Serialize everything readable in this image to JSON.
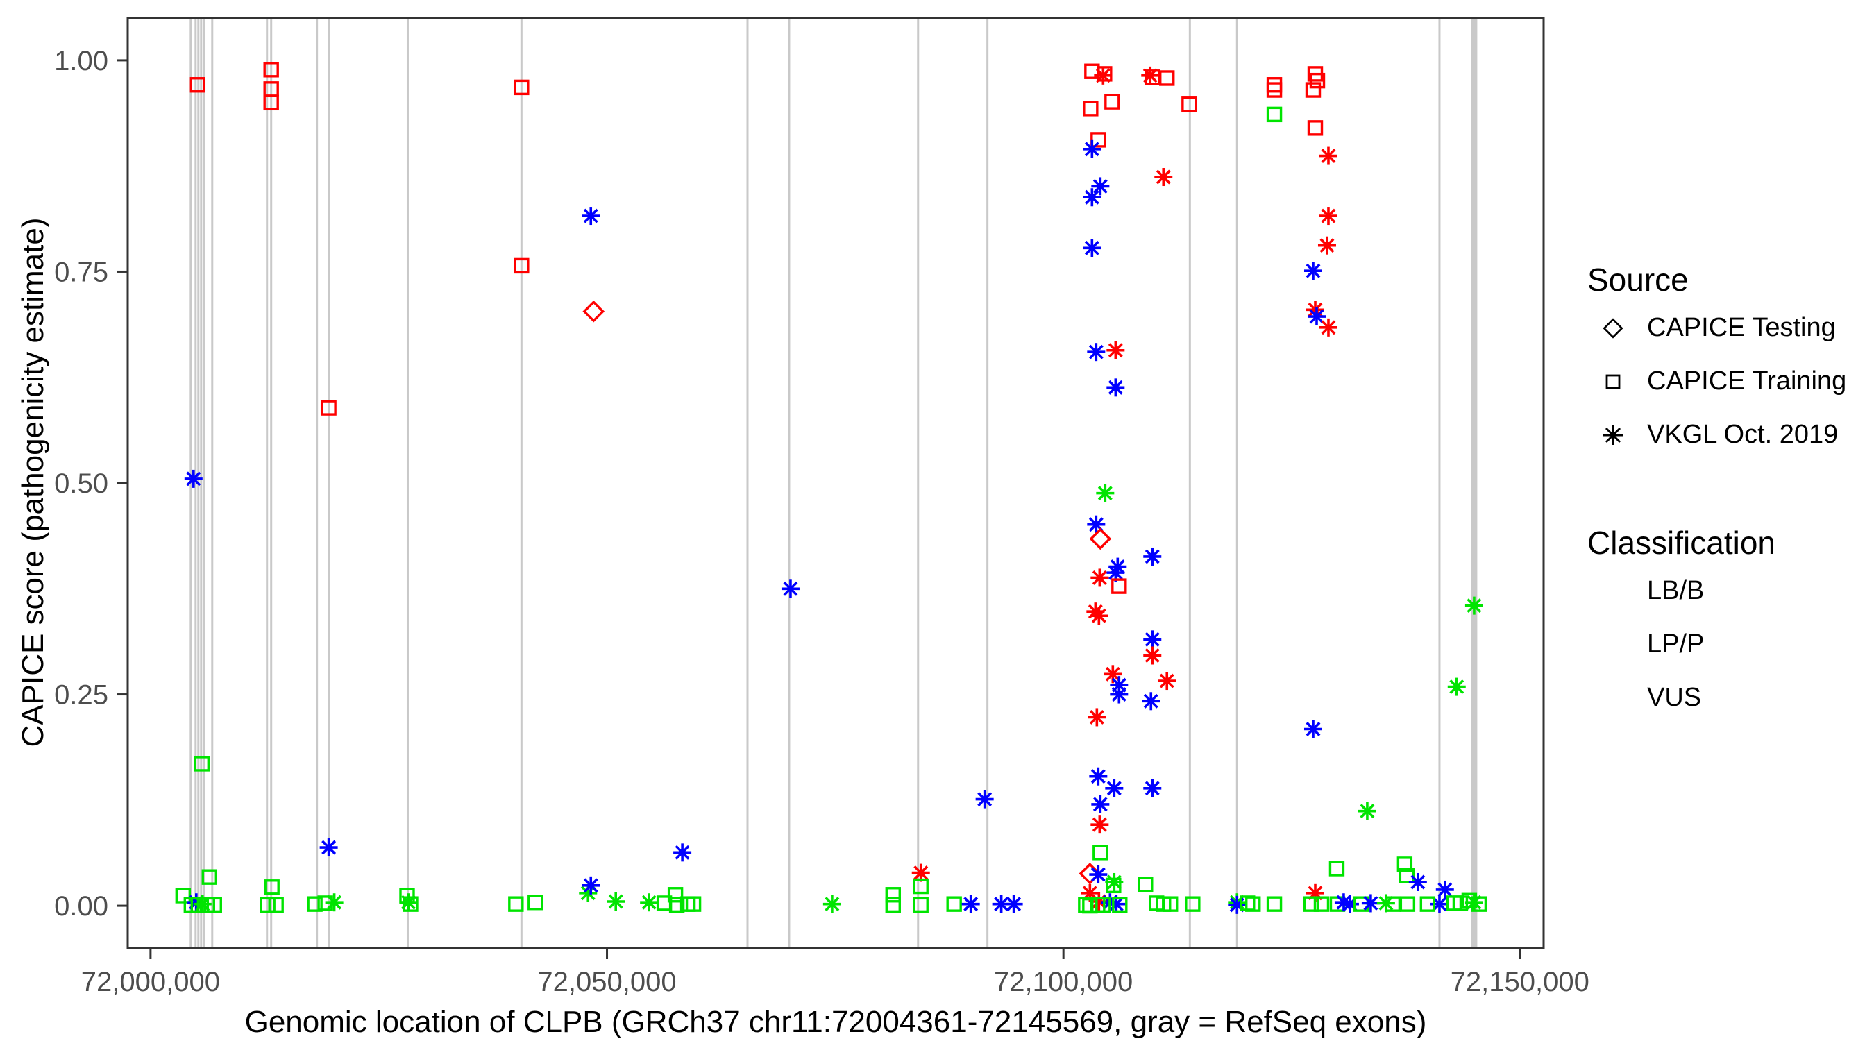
{
  "chart_data": {
    "type": "scatter",
    "xlabel": "Genomic location of CLPB (GRCh37 chr11:72004361-72145569, gray = RefSeq exons)",
    "ylabel": "CAPICE score (pathogenicity estimate)",
    "xlim": [
      71997500,
      72152600
    ],
    "ylim": [
      -0.05,
      1.05
    ],
    "grid": false,
    "x_ticks": [
      {
        "value": 72000000,
        "label": "72,000,000"
      },
      {
        "value": 72050000,
        "label": "72,050,000"
      },
      {
        "value": 72100000,
        "label": "72,100,000"
      },
      {
        "value": 72150000,
        "label": "72,150,000"
      }
    ],
    "y_ticks": [
      {
        "value": 0.0,
        "label": "0.00"
      },
      {
        "value": 0.25,
        "label": "0.25"
      },
      {
        "value": 0.5,
        "label": "0.50"
      },
      {
        "value": 0.75,
        "label": "0.75"
      },
      {
        "value": 1.0,
        "label": "1.00"
      }
    ],
    "exon_note": "gray vertical lines = RefSeq exons",
    "exons": [
      {
        "pos": 72004404,
        "w": 3
      },
      {
        "pos": 72004936,
        "w": 3
      },
      {
        "pos": 72005240,
        "w": 3
      },
      {
        "pos": 72005544,
        "w": 3
      },
      {
        "pos": 72005848,
        "w": 3
      },
      {
        "pos": 72006759,
        "w": 3
      },
      {
        "pos": 72012759,
        "w": 3
      },
      {
        "pos": 72013215,
        "w": 3
      },
      {
        "pos": 72018228,
        "w": 3
      },
      {
        "pos": 72019519,
        "w": 3
      },
      {
        "pos": 72028177,
        "w": 3
      },
      {
        "pos": 72040633,
        "w": 3
      },
      {
        "pos": 72065395,
        "w": 3
      },
      {
        "pos": 72069952,
        "w": 3
      },
      {
        "pos": 72084079,
        "w": 3
      },
      {
        "pos": 72091674,
        "w": 3
      },
      {
        "pos": 72113851,
        "w": 3
      },
      {
        "pos": 72119016,
        "w": 3
      },
      {
        "pos": 72141193,
        "w": 3
      },
      {
        "pos": 72144990,
        "w": 9
      }
    ],
    "classification_colors": {
      "LB/B": "#00E400",
      "LP/P": "#FF0000",
      "VUS": "#0000FF"
    },
    "source_shapes": {
      "testing": "diamond",
      "training": "square",
      "vkgl": "asterisk"
    },
    "points": [
      [
        72004709,
        0.505,
        "VUS",
        "vkgl"
      ],
      [
        72005164,
        0.971,
        "LP/P",
        "training"
      ],
      [
        72005620,
        0.168,
        "LB/B",
        "training"
      ],
      [
        72006455,
        0.034,
        "LB/B",
        "training"
      ],
      [
        72003569,
        0.012,
        "LB/B",
        "training"
      ],
      [
        72005012,
        0.004,
        "VUS",
        "vkgl"
      ],
      [
        72005696,
        0.002,
        "LB/B",
        "vkgl"
      ],
      [
        72004480,
        0.001,
        "LB/B",
        "training"
      ],
      [
        72005240,
        0.001,
        "LB/B",
        "training"
      ],
      [
        72006227,
        0.001,
        "LB/B",
        "training"
      ],
      [
        72006987,
        0.001,
        "LB/B",
        "training"
      ],
      [
        72013215,
        0.989,
        "LP/P",
        "training"
      ],
      [
        72013215,
        0.966,
        "LP/P",
        "training"
      ],
      [
        72013215,
        0.95,
        "LP/P",
        "training"
      ],
      [
        72013291,
        0.022,
        "LB/B",
        "training"
      ],
      [
        72012835,
        0.001,
        "LB/B",
        "training"
      ],
      [
        72013747,
        0.001,
        "LB/B",
        "training"
      ],
      [
        72019519,
        0.589,
        "LP/P",
        "training"
      ],
      [
        72019519,
        0.069,
        "VUS",
        "vkgl"
      ],
      [
        72018000,
        0.002,
        "LB/B",
        "training"
      ],
      [
        72019139,
        0.003,
        "LB/B",
        "training"
      ],
      [
        72020127,
        0.004,
        "LB/B",
        "vkgl"
      ],
      [
        72028101,
        0.012,
        "LB/B",
        "training"
      ],
      [
        72028253,
        0.004,
        "LB/B",
        "vkgl"
      ],
      [
        72028481,
        0.002,
        "LB/B",
        "training"
      ],
      [
        72040633,
        0.968,
        "LP/P",
        "training"
      ],
      [
        72040633,
        0.757,
        "LP/P",
        "training"
      ],
      [
        72048230,
        0.816,
        "VUS",
        "vkgl"
      ],
      [
        72048534,
        0.703,
        "LP/P",
        "testing"
      ],
      [
        72040025,
        0.002,
        "LB/B",
        "training"
      ],
      [
        72042152,
        0.004,
        "LB/B",
        "training"
      ],
      [
        72047926,
        0.015,
        "LB/B",
        "vkgl"
      ],
      [
        72048230,
        0.024,
        "VUS",
        "vkgl"
      ],
      [
        72050964,
        0.005,
        "LB/B",
        "vkgl"
      ],
      [
        72054610,
        0.004,
        "LB/B",
        "vkgl"
      ],
      [
        72056281,
        0.003,
        "LB/B",
        "training"
      ],
      [
        72057496,
        0.013,
        "LB/B",
        "training"
      ],
      [
        72057648,
        0.001,
        "LB/B",
        "training"
      ],
      [
        72058863,
        0.002,
        "LB/B",
        "training"
      ],
      [
        72059471,
        0.002,
        "LB/B",
        "training"
      ],
      [
        72058255,
        0.063,
        "VUS",
        "vkgl"
      ],
      [
        72070104,
        0.375,
        "VUS",
        "vkgl"
      ],
      [
        72074660,
        0.002,
        "LB/B",
        "vkgl"
      ],
      [
        72081344,
        0.013,
        "LB/B",
        "training"
      ],
      [
        72081344,
        0.001,
        "LB/B",
        "training"
      ],
      [
        72084382,
        0.039,
        "LP/P",
        "vkgl"
      ],
      [
        72084382,
        0.023,
        "LB/B",
        "training"
      ],
      [
        72084382,
        0.001,
        "LB/B",
        "training"
      ],
      [
        72088028,
        0.002,
        "LB/B",
        "training"
      ],
      [
        72089851,
        0.002,
        "VUS",
        "vkgl"
      ],
      [
        72091370,
        0.126,
        "VUS",
        "vkgl"
      ],
      [
        72093193,
        0.002,
        "VUS",
        "vkgl"
      ],
      [
        72094560,
        0.002,
        "VUS",
        "vkgl"
      ],
      [
        72103130,
        0.987,
        "LP/P",
        "training"
      ],
      [
        72104498,
        0.984,
        "LP/P",
        "training"
      ],
      [
        72104346,
        0.982,
        "LP/P",
        "vkgl"
      ],
      [
        72109511,
        0.982,
        "LP/P",
        "vkgl"
      ],
      [
        72109739,
        0.98,
        "LP/P",
        "training"
      ],
      [
        72111334,
        0.979,
        "LP/P",
        "training"
      ],
      [
        72113775,
        0.948,
        "LP/P",
        "training"
      ],
      [
        72102978,
        0.943,
        "LP/P",
        "training"
      ],
      [
        72105334,
        0.951,
        "LP/P",
        "training"
      ],
      [
        72103814,
        0.906,
        "LP/P",
        "training"
      ],
      [
        72103130,
        0.895,
        "VUS",
        "vkgl"
      ],
      [
        72104042,
        0.851,
        "VUS",
        "vkgl"
      ],
      [
        72103130,
        0.838,
        "VUS",
        "vkgl"
      ],
      [
        72110954,
        0.862,
        "LP/P",
        "vkgl"
      ],
      [
        72103130,
        0.778,
        "VUS",
        "vkgl"
      ],
      [
        72103586,
        0.655,
        "VUS",
        "vkgl"
      ],
      [
        72105714,
        0.657,
        "LP/P",
        "vkgl"
      ],
      [
        72105714,
        0.613,
        "VUS",
        "vkgl"
      ],
      [
        72104574,
        0.488,
        "LB/B",
        "vkgl"
      ],
      [
        72103586,
        0.451,
        "VUS",
        "vkgl"
      ],
      [
        72104042,
        0.434,
        "LP/P",
        "testing"
      ],
      [
        72109739,
        0.413,
        "VUS",
        "vkgl"
      ],
      [
        72105941,
        0.401,
        "VUS",
        "vkgl"
      ],
      [
        72105714,
        0.394,
        "VUS",
        "vkgl"
      ],
      [
        72103966,
        0.388,
        "LP/P",
        "vkgl"
      ],
      [
        72106093,
        0.378,
        "LP/P",
        "training"
      ],
      [
        72103510,
        0.348,
        "LP/P",
        "vkgl"
      ],
      [
        72103890,
        0.343,
        "LP/P",
        "vkgl"
      ],
      [
        72109739,
        0.315,
        "VUS",
        "vkgl"
      ],
      [
        72109739,
        0.296,
        "LP/P",
        "vkgl"
      ],
      [
        72105410,
        0.274,
        "LP/P",
        "vkgl"
      ],
      [
        72111334,
        0.266,
        "LP/P",
        "vkgl"
      ],
      [
        72106093,
        0.261,
        "VUS",
        "vkgl"
      ],
      [
        72106093,
        0.25,
        "VUS",
        "vkgl"
      ],
      [
        72109587,
        0.242,
        "VUS",
        "vkgl"
      ],
      [
        72103662,
        0.223,
        "LP/P",
        "vkgl"
      ],
      [
        72103814,
        0.153,
        "VUS",
        "vkgl"
      ],
      [
        72105562,
        0.139,
        "VUS",
        "vkgl"
      ],
      [
        72109739,
        0.139,
        "VUS",
        "vkgl"
      ],
      [
        72104042,
        0.12,
        "VUS",
        "vkgl"
      ],
      [
        72103966,
        0.096,
        "LP/P",
        "vkgl"
      ],
      [
        72104042,
        0.063,
        "LB/B",
        "training"
      ],
      [
        72102902,
        0.038,
        "LP/P",
        "testing"
      ],
      [
        72103814,
        0.037,
        "VUS",
        "vkgl"
      ],
      [
        72105562,
        0.028,
        "LB/B",
        "vkgl"
      ],
      [
        72105486,
        0.024,
        "LB/B",
        "training"
      ],
      [
        72102902,
        0.015,
        "LP/P",
        "vkgl"
      ],
      [
        72103890,
        0.005,
        "LP/P",
        "vkgl"
      ],
      [
        72105106,
        0.004,
        "VUS",
        "vkgl"
      ],
      [
        72105790,
        0.002,
        "VUS",
        "vkgl"
      ],
      [
        72102446,
        0.001,
        "LB/B",
        "training"
      ],
      [
        72102902,
        0.0,
        "LB/B",
        "training"
      ],
      [
        72103738,
        0.001,
        "LB/B",
        "training"
      ],
      [
        72104346,
        0.001,
        "LB/B",
        "training"
      ],
      [
        72106169,
        0.001,
        "LB/B",
        "training"
      ],
      [
        72108980,
        0.025,
        "LB/B",
        "training"
      ],
      [
        72110195,
        0.003,
        "LB/B",
        "training"
      ],
      [
        72110954,
        0.002,
        "LB/B",
        "training"
      ],
      [
        72111713,
        0.002,
        "LB/B",
        "training"
      ],
      [
        72114155,
        0.002,
        "LB/B",
        "training"
      ],
      [
        72119016,
        0.004,
        "LB/B",
        "vkgl"
      ],
      [
        72119016,
        0.001,
        "VUS",
        "vkgl"
      ],
      [
        72120155,
        0.003,
        "LB/B",
        "training"
      ],
      [
        72123105,
        0.971,
        "LP/P",
        "training"
      ],
      [
        72123105,
        0.965,
        "LP/P",
        "training"
      ],
      [
        72123105,
        0.936,
        "LB/B",
        "training"
      ],
      [
        72127586,
        0.984,
        "LP/P",
        "training"
      ],
      [
        72127814,
        0.976,
        "LP/P",
        "training"
      ],
      [
        72127358,
        0.965,
        "LP/P",
        "training"
      ],
      [
        72127586,
        0.92,
        "LP/P",
        "training"
      ],
      [
        72129029,
        0.887,
        "LP/P",
        "vkgl"
      ],
      [
        72129029,
        0.816,
        "LP/P",
        "vkgl"
      ],
      [
        72128877,
        0.781,
        "LP/P",
        "vkgl"
      ],
      [
        72127358,
        0.751,
        "VUS",
        "vkgl"
      ],
      [
        72127586,
        0.705,
        "LP/P",
        "vkgl"
      ],
      [
        72127738,
        0.697,
        "VUS",
        "vkgl"
      ],
      [
        72129029,
        0.684,
        "LP/P",
        "vkgl"
      ],
      [
        72127358,
        0.209,
        "VUS",
        "vkgl"
      ],
      [
        72133282,
        0.112,
        "LB/B",
        "vkgl"
      ],
      [
        72129940,
        0.044,
        "LB/B",
        "training"
      ],
      [
        72127586,
        0.015,
        "LP/P",
        "vkgl"
      ],
      [
        72137383,
        0.049,
        "LB/B",
        "training"
      ],
      [
        72137611,
        0.036,
        "LB/B",
        "training"
      ],
      [
        72138826,
        0.028,
        "VUS",
        "vkgl"
      ],
      [
        72141788,
        0.019,
        "VUS",
        "vkgl"
      ],
      [
        72141193,
        0.002,
        "VUS",
        "vkgl"
      ],
      [
        72120763,
        0.002,
        "LB/B",
        "training"
      ],
      [
        72123105,
        0.002,
        "LB/B",
        "training"
      ],
      [
        72127130,
        0.002,
        "LB/B",
        "training"
      ],
      [
        72128269,
        0.002,
        "LB/B",
        "training"
      ],
      [
        72130016,
        0.002,
        "LB/B",
        "training"
      ],
      [
        72130699,
        0.004,
        "VUS",
        "vkgl"
      ],
      [
        72131383,
        0.002,
        "VUS",
        "vkgl"
      ],
      [
        72132598,
        0.002,
        "LB/B",
        "training"
      ],
      [
        72133662,
        0.003,
        "VUS",
        "vkgl"
      ],
      [
        72135334,
        0.003,
        "LB/B",
        "vkgl"
      ],
      [
        72136093,
        0.002,
        "LB/B",
        "training"
      ],
      [
        72137687,
        0.002,
        "LB/B",
        "training"
      ],
      [
        72139890,
        0.002,
        "LB/B",
        "training"
      ],
      [
        72142788,
        0.003,
        "LB/B",
        "training"
      ],
      [
        72143472,
        0.003,
        "LB/B",
        "training"
      ],
      [
        72144459,
        0.006,
        "LB/B",
        "training"
      ],
      [
        72144990,
        0.004,
        "LB/B",
        "vkgl"
      ],
      [
        72145522,
        0.002,
        "LB/B",
        "training"
      ],
      [
        72144990,
        0.355,
        "LB/B",
        "vkgl"
      ],
      [
        72143079,
        0.259,
        "LB/B",
        "vkgl"
      ]
    ],
    "legend": {
      "source_title": "Source",
      "source_items": [
        {
          "key": "testing",
          "label": "CAPICE Testing"
        },
        {
          "key": "training",
          "label": "CAPICE Training"
        },
        {
          "key": "vkgl",
          "label": "VKGL Oct. 2019"
        }
      ],
      "classification_title": "Classification",
      "classification_items": [
        {
          "key": "LB/B",
          "label": "LB/B",
          "color": "#00E400"
        },
        {
          "key": "LP/P",
          "label": "LP/P",
          "color": "#FF0000"
        },
        {
          "key": "VUS",
          "label": "VUS",
          "color": "#0000FF"
        }
      ]
    },
    "style": {
      "exon_color": "#C9C9C9",
      "panel_border_color": "#333333",
      "tick_text_color": "#4D4D4D"
    }
  }
}
